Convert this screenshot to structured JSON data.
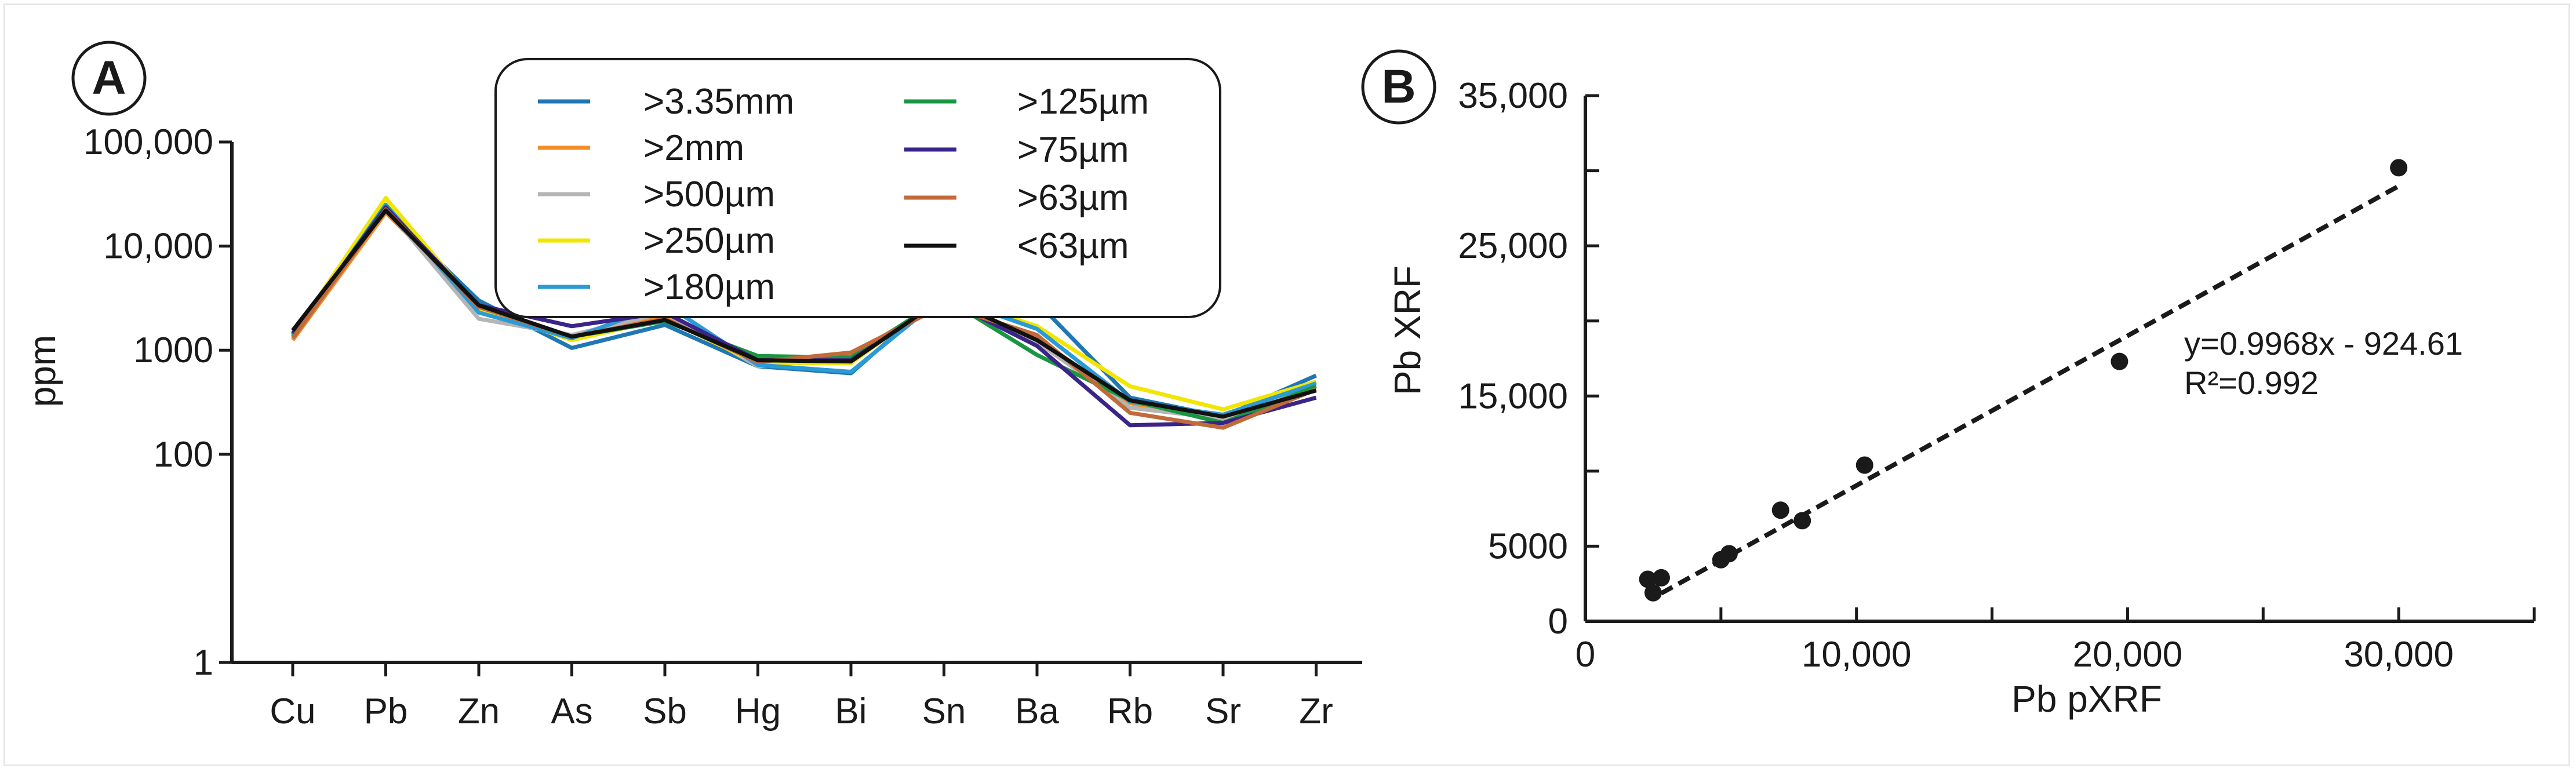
{
  "panel_a_label": "A",
  "panel_b_label": "B",
  "chart_data": [
    {
      "type": "line",
      "ylabel": "ppm",
      "xlabel": "",
      "yscale": "log",
      "ylim": [
        1,
        100000
      ],
      "yticks": [
        {
          "value": 1,
          "label": "1"
        },
        {
          "value": 100,
          "label": "100"
        },
        {
          "value": 1000,
          "label": "1000"
        },
        {
          "value": 10000,
          "label": "10,000"
        },
        {
          "value": 100000,
          "label": "100,000"
        }
      ],
      "categories": [
        "Cu",
        "Pb",
        "Zn",
        "As",
        "Sb",
        "Hg",
        "Bi",
        "Sn",
        "Ba",
        "Rb",
        "Sr",
        "Zr"
      ],
      "legend_position": "top-right",
      "series": [
        {
          "name": ">3.35mm",
          "color": "#1f77b4",
          "values": [
            1300,
            22000,
            3000,
            1050,
            1750,
            700,
            600,
            3600,
            2900,
            350,
            230,
            570
          ]
        },
        {
          "name": ">2mm",
          "color": "#f28e2b",
          "values": [
            1250,
            21000,
            2700,
            1350,
            2200,
            800,
            900,
            3000,
            1300,
            310,
            210,
            450
          ]
        },
        {
          "name": ">500µm",
          "color": "#b5b5b5",
          "values": [
            1350,
            23000,
            2000,
            1400,
            2300,
            700,
            850,
            3100,
            1200,
            280,
            220,
            500
          ]
        },
        {
          "name": ">250µm",
          "color": "#f2e600",
          "values": [
            1400,
            29000,
            2500,
            1250,
            2000,
            750,
            750,
            3400,
            1700,
            450,
            270,
            500
          ]
        },
        {
          "name": ">180µm",
          "color": "#2b9bd6",
          "values": [
            1350,
            25000,
            2300,
            1300,
            2800,
            720,
            620,
            3300,
            1600,
            320,
            240,
            480
          ]
        },
        {
          "name": ">125µm",
          "color": "#1a9641",
          "values": [
            1400,
            24000,
            2600,
            1350,
            1900,
            880,
            850,
            3200,
            900,
            330,
            200,
            450
          ]
        },
        {
          "name": ">75µm",
          "color": "#3b2489",
          "values": [
            1450,
            23500,
            2700,
            1700,
            2300,
            800,
            800,
            3100,
            1100,
            190,
            200,
            350
          ]
        },
        {
          "name": ">63µm",
          "color": "#c16a3a",
          "values": [
            1300,
            22500,
            2600,
            1350,
            2000,
            770,
            950,
            2700,
            1400,
            250,
            180,
            420
          ]
        },
        {
          "name": "<63µm",
          "color": "#111111",
          "values": [
            1550,
            22000,
            2700,
            1350,
            1950,
            800,
            780,
            3200,
            1250,
            330,
            230,
            410
          ]
        }
      ]
    },
    {
      "type": "scatter",
      "xlabel": "Pb pXRF",
      "ylabel": "Pb XRF",
      "xlim": [
        0,
        35000
      ],
      "ylim": [
        0,
        35000
      ],
      "xticks": [
        {
          "value": 0,
          "label": "0"
        },
        {
          "value": 10000,
          "label": "10,000"
        },
        {
          "value": 20000,
          "label": "20,000"
        },
        {
          "value": 30000,
          "label": "30,000"
        }
      ],
      "xminor": [
        5000,
        15000,
        25000,
        35000
      ],
      "yticks": [
        {
          "value": 0,
          "label": "0"
        },
        {
          "value": 5000,
          "label": "5000"
        },
        {
          "value": 15000,
          "label": "15,000"
        },
        {
          "value": 25000,
          "label": "25,000"
        },
        {
          "value": 35000,
          "label": "35,000"
        }
      ],
      "yminor": [
        10000,
        20000,
        30000
      ],
      "points": [
        {
          "x": 2300,
          "y": 2800
        },
        {
          "x": 2500,
          "y": 1900
        },
        {
          "x": 2800,
          "y": 2900
        },
        {
          "x": 5000,
          "y": 4100
        },
        {
          "x": 5300,
          "y": 4500
        },
        {
          "x": 7200,
          "y": 7400
        },
        {
          "x": 8000,
          "y": 6700
        },
        {
          "x": 10300,
          "y": 10400
        },
        {
          "x": 19700,
          "y": 17300
        },
        {
          "x": 30000,
          "y": 30200
        }
      ],
      "trendline": {
        "slope": 0.9968,
        "intercept": -924.61,
        "x_range": [
          2800,
          30000
        ],
        "style": "dashed"
      },
      "annotation": [
        "y=0.9968x - 924.61",
        "R²=0.992"
      ]
    }
  ]
}
